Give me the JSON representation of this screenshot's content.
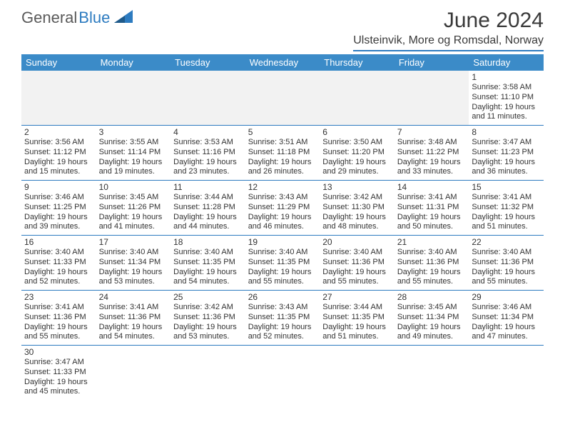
{
  "brand": {
    "general": "General",
    "blue": "Blue",
    "icon_fill": "#2d7bc0"
  },
  "title": "June 2024",
  "location": "Ulsteinvik, More og Romsdal, Norway",
  "weekdays": [
    "Sunday",
    "Monday",
    "Tuesday",
    "Wednesday",
    "Thursday",
    "Friday",
    "Saturday"
  ],
  "colors": {
    "header_bg": "#3b8bc8",
    "accent": "#2d7bc0",
    "blank_bg": "#f2f2f2",
    "text": "#333333"
  },
  "weeks": [
    [
      null,
      null,
      null,
      null,
      null,
      null,
      {
        "n": "1",
        "sr": "Sunrise: 3:58 AM",
        "ss": "Sunset: 11:10 PM",
        "d1": "Daylight: 19 hours",
        "d2": "and 11 minutes."
      }
    ],
    [
      {
        "n": "2",
        "sr": "Sunrise: 3:56 AM",
        "ss": "Sunset: 11:12 PM",
        "d1": "Daylight: 19 hours",
        "d2": "and 15 minutes."
      },
      {
        "n": "3",
        "sr": "Sunrise: 3:55 AM",
        "ss": "Sunset: 11:14 PM",
        "d1": "Daylight: 19 hours",
        "d2": "and 19 minutes."
      },
      {
        "n": "4",
        "sr": "Sunrise: 3:53 AM",
        "ss": "Sunset: 11:16 PM",
        "d1": "Daylight: 19 hours",
        "d2": "and 23 minutes."
      },
      {
        "n": "5",
        "sr": "Sunrise: 3:51 AM",
        "ss": "Sunset: 11:18 PM",
        "d1": "Daylight: 19 hours",
        "d2": "and 26 minutes."
      },
      {
        "n": "6",
        "sr": "Sunrise: 3:50 AM",
        "ss": "Sunset: 11:20 PM",
        "d1": "Daylight: 19 hours",
        "d2": "and 29 minutes."
      },
      {
        "n": "7",
        "sr": "Sunrise: 3:48 AM",
        "ss": "Sunset: 11:22 PM",
        "d1": "Daylight: 19 hours",
        "d2": "and 33 minutes."
      },
      {
        "n": "8",
        "sr": "Sunrise: 3:47 AM",
        "ss": "Sunset: 11:23 PM",
        "d1": "Daylight: 19 hours",
        "d2": "and 36 minutes."
      }
    ],
    [
      {
        "n": "9",
        "sr": "Sunrise: 3:46 AM",
        "ss": "Sunset: 11:25 PM",
        "d1": "Daylight: 19 hours",
        "d2": "and 39 minutes."
      },
      {
        "n": "10",
        "sr": "Sunrise: 3:45 AM",
        "ss": "Sunset: 11:26 PM",
        "d1": "Daylight: 19 hours",
        "d2": "and 41 minutes."
      },
      {
        "n": "11",
        "sr": "Sunrise: 3:44 AM",
        "ss": "Sunset: 11:28 PM",
        "d1": "Daylight: 19 hours",
        "d2": "and 44 minutes."
      },
      {
        "n": "12",
        "sr": "Sunrise: 3:43 AM",
        "ss": "Sunset: 11:29 PM",
        "d1": "Daylight: 19 hours",
        "d2": "and 46 minutes."
      },
      {
        "n": "13",
        "sr": "Sunrise: 3:42 AM",
        "ss": "Sunset: 11:30 PM",
        "d1": "Daylight: 19 hours",
        "d2": "and 48 minutes."
      },
      {
        "n": "14",
        "sr": "Sunrise: 3:41 AM",
        "ss": "Sunset: 11:31 PM",
        "d1": "Daylight: 19 hours",
        "d2": "and 50 minutes."
      },
      {
        "n": "15",
        "sr": "Sunrise: 3:41 AM",
        "ss": "Sunset: 11:32 PM",
        "d1": "Daylight: 19 hours",
        "d2": "and 51 minutes."
      }
    ],
    [
      {
        "n": "16",
        "sr": "Sunrise: 3:40 AM",
        "ss": "Sunset: 11:33 PM",
        "d1": "Daylight: 19 hours",
        "d2": "and 52 minutes."
      },
      {
        "n": "17",
        "sr": "Sunrise: 3:40 AM",
        "ss": "Sunset: 11:34 PM",
        "d1": "Daylight: 19 hours",
        "d2": "and 53 minutes."
      },
      {
        "n": "18",
        "sr": "Sunrise: 3:40 AM",
        "ss": "Sunset: 11:35 PM",
        "d1": "Daylight: 19 hours",
        "d2": "and 54 minutes."
      },
      {
        "n": "19",
        "sr": "Sunrise: 3:40 AM",
        "ss": "Sunset: 11:35 PM",
        "d1": "Daylight: 19 hours",
        "d2": "and 55 minutes."
      },
      {
        "n": "20",
        "sr": "Sunrise: 3:40 AM",
        "ss": "Sunset: 11:36 PM",
        "d1": "Daylight: 19 hours",
        "d2": "and 55 minutes."
      },
      {
        "n": "21",
        "sr": "Sunrise: 3:40 AM",
        "ss": "Sunset: 11:36 PM",
        "d1": "Daylight: 19 hours",
        "d2": "and 55 minutes."
      },
      {
        "n": "22",
        "sr": "Sunrise: 3:40 AM",
        "ss": "Sunset: 11:36 PM",
        "d1": "Daylight: 19 hours",
        "d2": "and 55 minutes."
      }
    ],
    [
      {
        "n": "23",
        "sr": "Sunrise: 3:41 AM",
        "ss": "Sunset: 11:36 PM",
        "d1": "Daylight: 19 hours",
        "d2": "and 55 minutes."
      },
      {
        "n": "24",
        "sr": "Sunrise: 3:41 AM",
        "ss": "Sunset: 11:36 PM",
        "d1": "Daylight: 19 hours",
        "d2": "and 54 minutes."
      },
      {
        "n": "25",
        "sr": "Sunrise: 3:42 AM",
        "ss": "Sunset: 11:36 PM",
        "d1": "Daylight: 19 hours",
        "d2": "and 53 minutes."
      },
      {
        "n": "26",
        "sr": "Sunrise: 3:43 AM",
        "ss": "Sunset: 11:35 PM",
        "d1": "Daylight: 19 hours",
        "d2": "and 52 minutes."
      },
      {
        "n": "27",
        "sr": "Sunrise: 3:44 AM",
        "ss": "Sunset: 11:35 PM",
        "d1": "Daylight: 19 hours",
        "d2": "and 51 minutes."
      },
      {
        "n": "28",
        "sr": "Sunrise: 3:45 AM",
        "ss": "Sunset: 11:34 PM",
        "d1": "Daylight: 19 hours",
        "d2": "and 49 minutes."
      },
      {
        "n": "29",
        "sr": "Sunrise: 3:46 AM",
        "ss": "Sunset: 11:34 PM",
        "d1": "Daylight: 19 hours",
        "d2": "and 47 minutes."
      }
    ],
    [
      {
        "n": "30",
        "sr": "Sunrise: 3:47 AM",
        "ss": "Sunset: 11:33 PM",
        "d1": "Daylight: 19 hours",
        "d2": "and 45 minutes."
      },
      null,
      null,
      null,
      null,
      null,
      null
    ]
  ]
}
